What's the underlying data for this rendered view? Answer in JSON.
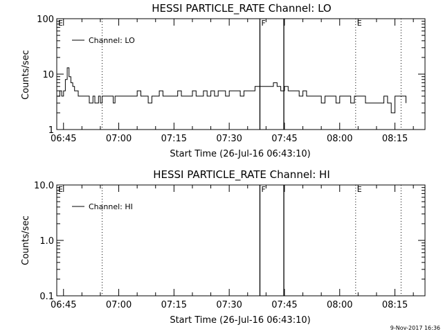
{
  "footer_timestamp": "9-Nov-2017 16:36",
  "chart_data": [
    {
      "type": "line",
      "title": "HESSI PARTICLE_RATE Channel: LO",
      "xlabel": "Start Time (26-Jul-16 06:43:10)",
      "ylabel": "Counts/sec",
      "yscale": "log",
      "ylim": [
        1,
        100
      ],
      "y_tick_labels": [
        "1",
        "10",
        "100"
      ],
      "y_tick_values": [
        1,
        10,
        100
      ],
      "xlim": [
        "06:43:10",
        "08:23:10"
      ],
      "x_tick_labels": [
        "06:45",
        "07:00",
        "07:15",
        "07:30",
        "07:45",
        "08:00",
        "08:15"
      ],
      "legend": "top-left",
      "markers": [
        {
          "label": "E",
          "time": "06:43:10",
          "style": "label"
        },
        {
          "label": "",
          "time": "06:55:30",
          "style": "dotted"
        },
        {
          "label": "F",
          "time": "07:38:20",
          "style": "solid"
        },
        {
          "label": "",
          "time": "07:44:50",
          "style": "solid"
        },
        {
          "label": "E",
          "time": "08:04:20",
          "style": "dotted"
        },
        {
          "label": "",
          "time": "08:16:40",
          "style": "dotted"
        }
      ],
      "series": [
        {
          "name": "Channel: LO",
          "x": [
            "06:43:20",
            "06:44:00",
            "06:44:30",
            "06:45:00",
            "06:45:30",
            "06:46:00",
            "06:46:30",
            "06:47:00",
            "06:47:30",
            "06:48:00",
            "06:48:30",
            "06:49:00",
            "06:49:30",
            "06:50:00",
            "06:50:30",
            "06:51:00",
            "06:52:00",
            "06:53:00",
            "06:53:30",
            "06:54:00",
            "06:54:30",
            "06:55:00",
            "06:55:30",
            "06:56:00",
            "06:57:00",
            "06:58:00",
            "06:58:30",
            "06:59:00",
            "06:59:30",
            "07:00:00",
            "07:01:00",
            "07:02:00",
            "07:03:00",
            "07:04:00",
            "07:05:00",
            "07:06:00",
            "07:07:00",
            "07:08:00",
            "07:09:00",
            "07:10:00",
            "07:11:00",
            "07:12:00",
            "07:13:00",
            "07:14:00",
            "07:15:00",
            "07:16:00",
            "07:17:00",
            "07:18:00",
            "07:19:00",
            "07:20:00",
            "07:21:00",
            "07:22:00",
            "07:23:00",
            "07:24:00",
            "07:25:00",
            "07:26:00",
            "07:27:00",
            "07:28:00",
            "07:29:00",
            "07:30:00",
            "07:31:00",
            "07:32:00",
            "07:33:00",
            "07:34:00",
            "07:35:00",
            "07:36:00",
            "07:37:00",
            "07:38:00",
            "07:39:00",
            "07:40:00",
            "07:41:00",
            "07:42:00",
            "07:43:00",
            "07:44:00",
            "07:45:00",
            "07:46:00",
            "07:47:00",
            "07:48:00",
            "07:49:00",
            "07:50:00",
            "07:51:00",
            "07:52:00",
            "07:53:00",
            "07:54:00",
            "07:55:00",
            "07:56:00",
            "07:57:00",
            "07:58:00",
            "07:59:00",
            "08:00:00",
            "08:01:00",
            "08:02:00",
            "08:03:00",
            "08:04:00",
            "08:05:00",
            "08:06:00",
            "08:07:00",
            "08:08:00",
            "08:09:00",
            "08:10:00",
            "08:11:00",
            "08:12:00",
            "08:13:00",
            "08:14:00",
            "08:15:00",
            "08:16:00",
            "08:17:00",
            "08:18:00"
          ],
          "y": [
            4,
            5,
            4,
            5,
            8,
            13,
            9,
            7,
            6,
            5,
            5,
            4,
            4,
            4,
            4,
            4,
            3,
            4,
            3,
            3,
            4,
            3,
            4,
            4,
            4,
            4,
            3,
            4,
            4,
            4,
            4,
            4,
            4,
            4,
            5,
            4,
            4,
            3,
            4,
            4,
            5,
            4,
            4,
            4,
            4,
            5,
            4,
            4,
            4,
            5,
            4,
            4,
            5,
            4,
            5,
            4,
            5,
            5,
            4,
            5,
            5,
            5,
            4,
            5,
            5,
            5,
            6,
            6,
            6,
            6,
            6,
            7,
            6,
            5,
            6,
            5,
            5,
            5,
            4,
            5,
            4,
            4,
            4,
            4,
            3,
            4,
            4,
            4,
            3,
            4,
            4,
            4,
            3,
            4,
            4,
            4,
            3,
            3,
            3,
            3,
            3,
            4,
            3,
            2,
            4,
            4,
            4,
            3
          ]
        }
      ]
    },
    {
      "type": "line",
      "title": "HESSI PARTICLE_RATE Channel: HI",
      "xlabel": "Start Time (26-Jul-16 06:43:10)",
      "ylabel": "Counts/sec",
      "yscale": "log",
      "ylim": [
        0.1,
        10
      ],
      "y_tick_labels": [
        "0.1",
        "1.0",
        "10.0"
      ],
      "y_tick_values": [
        0.1,
        1,
        10
      ],
      "xlim": [
        "06:43:10",
        "08:23:10"
      ],
      "x_tick_labels": [
        "06:45",
        "07:00",
        "07:15",
        "07:30",
        "07:45",
        "08:00",
        "08:15"
      ],
      "legend": "top-left",
      "markers": [
        {
          "label": "E",
          "time": "06:43:10",
          "style": "label"
        },
        {
          "label": "",
          "time": "06:55:30",
          "style": "dotted"
        },
        {
          "label": "F",
          "time": "07:38:20",
          "style": "solid"
        },
        {
          "label": "",
          "time": "07:44:50",
          "style": "solid"
        },
        {
          "label": "E",
          "time": "08:04:20",
          "style": "dotted"
        },
        {
          "label": "",
          "time": "08:16:40",
          "style": "dotted"
        }
      ],
      "series": [
        {
          "name": "Channel: HI",
          "x": [],
          "y": []
        }
      ]
    }
  ]
}
